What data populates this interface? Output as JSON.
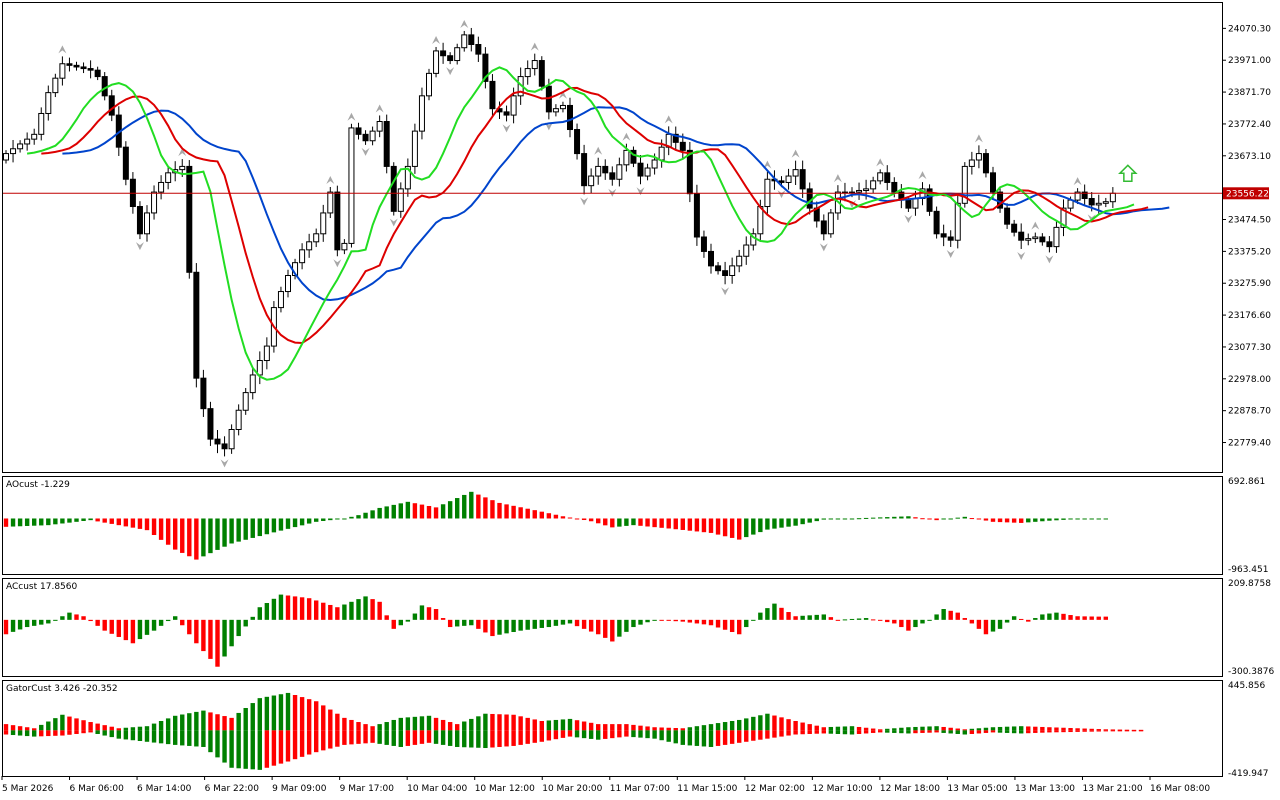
{
  "colors": {
    "background": "#ffffff",
    "frame": "#000000",
    "bull": "#008000",
    "bear": "#ff0000",
    "jaw": "#0044cc",
    "teeth": "#dd0000",
    "lips": "#22dd22",
    "fractal": "#a8a8a8",
    "price_line": "#c00000",
    "signal_arrow": "#33bb33"
  },
  "chart_data": [
    {
      "type": "candlestick",
      "panel": "main",
      "current_price_label": "23556.22",
      "current_price": 23556.22,
      "y_tick_labels": [
        "24070.30",
        "23971.00",
        "23871.70",
        "23772.40",
        "23673.10",
        "23474.50",
        "23375.20",
        "23275.90",
        "23176.60",
        "23077.30",
        "22978.00",
        "22878.70",
        "22779.40"
      ],
      "ylim": [
        22700,
        24140
      ],
      "x_tick_labels": [
        "5 Mar 2026",
        "6 Mar 06:00",
        "6 Mar 14:00",
        "6 Mar 22:00",
        "9 Mar 09:00",
        "9 Mar 17:00",
        "10 Mar 04:00",
        "10 Mar 12:00",
        "10 Mar 20:00",
        "11 Mar 07:00",
        "11 Mar 15:00",
        "12 Mar 02:00",
        "12 Mar 10:00",
        "12 Mar 18:00",
        "13 Mar 05:00",
        "13 Mar 13:00",
        "13 Mar 21:00",
        "16 Mar 08:00"
      ],
      "close_anchors": [
        [
          0,
          23680
        ],
        [
          4,
          23740
        ],
        [
          6,
          23870
        ],
        [
          8,
          23960
        ],
        [
          10,
          23950
        ],
        [
          12,
          23940
        ],
        [
          13,
          23920
        ],
        [
          15,
          23800
        ],
        [
          17,
          23600
        ],
        [
          19,
          23430
        ],
        [
          21,
          23560
        ],
        [
          23,
          23620
        ],
        [
          25,
          23640
        ],
        [
          27,
          22980
        ],
        [
          29,
          22790
        ],
        [
          31,
          22760
        ],
        [
          33,
          22880
        ],
        [
          35,
          22990
        ],
        [
          37,
          23080
        ],
        [
          38,
          23200
        ],
        [
          40,
          23300
        ],
        [
          42,
          23380
        ],
        [
          44,
          23430
        ],
        [
          46,
          23560
        ],
        [
          47,
          23380
        ],
        [
          48,
          23400
        ],
        [
          49,
          23760
        ],
        [
          51,
          23720
        ],
        [
          53,
          23780
        ],
        [
          55,
          23500
        ],
        [
          57,
          23640
        ],
        [
          59,
          23860
        ],
        [
          61,
          24000
        ],
        [
          63,
          23970
        ],
        [
          65,
          24050
        ],
        [
          67,
          23990
        ],
        [
          69,
          23820
        ],
        [
          71,
          23800
        ],
        [
          73,
          23920
        ],
        [
          75,
          23970
        ],
        [
          77,
          23810
        ],
        [
          79,
          23830
        ],
        [
          81,
          23680
        ],
        [
          82,
          23580
        ],
        [
          84,
          23640
        ],
        [
          86,
          23600
        ],
        [
          88,
          23690
        ],
        [
          90,
          23610
        ],
        [
          92,
          23660
        ],
        [
          94,
          23740
        ],
        [
          96,
          23690
        ],
        [
          98,
          23420
        ],
        [
          100,
          23330
        ],
        [
          102,
          23300
        ],
        [
          104,
          23360
        ],
        [
          106,
          23430
        ],
        [
          108,
          23600
        ],
        [
          110,
          23590
        ],
        [
          112,
          23630
        ],
        [
          114,
          23510
        ],
        [
          116,
          23430
        ],
        [
          118,
          23560
        ],
        [
          120,
          23560
        ],
        [
          122,
          23570
        ],
        [
          124,
          23620
        ],
        [
          126,
          23560
        ],
        [
          128,
          23510
        ],
        [
          130,
          23570
        ],
        [
          132,
          23430
        ],
        [
          134,
          23410
        ],
        [
          136,
          23640
        ],
        [
          138,
          23680
        ],
        [
          140,
          23560
        ],
        [
          142,
          23460
        ],
        [
          144,
          23410
        ],
        [
          146,
          23420
        ],
        [
          148,
          23390
        ],
        [
          150,
          23510
        ],
        [
          152,
          23560
        ],
        [
          154,
          23520
        ],
        [
          156,
          23530
        ],
        [
          157,
          23556.22
        ]
      ]
    },
    {
      "type": "bar",
      "panel": "AOcust",
      "label": "AOcust -1.229",
      "y_tick_labels": [
        "692.861",
        "-963.451"
      ],
      "ylim": [
        -963.451,
        692.861
      ],
      "anchors": [
        [
          0,
          -150
        ],
        [
          6,
          -120
        ],
        [
          12,
          -30
        ],
        [
          16,
          -120
        ],
        [
          20,
          -210
        ],
        [
          24,
          -560
        ],
        [
          27,
          -740
        ],
        [
          32,
          -450
        ],
        [
          38,
          -250
        ],
        [
          44,
          -60
        ],
        [
          48,
          0
        ],
        [
          50,
          60
        ],
        [
          53,
          190
        ],
        [
          57,
          300
        ],
        [
          61,
          200
        ],
        [
          66,
          480
        ],
        [
          70,
          280
        ],
        [
          75,
          150
        ],
        [
          79,
          40
        ],
        [
          83,
          -50
        ],
        [
          86,
          -160
        ],
        [
          89,
          -120
        ],
        [
          94,
          -180
        ],
        [
          100,
          -260
        ],
        [
          104,
          -380
        ],
        [
          108,
          -200
        ],
        [
          112,
          -130
        ],
        [
          116,
          -20
        ],
        [
          120,
          0
        ],
        [
          124,
          20
        ],
        [
          128,
          40
        ],
        [
          132,
          -30
        ],
        [
          136,
          30
        ],
        [
          140,
          -60
        ],
        [
          144,
          -80
        ],
        [
          148,
          -40
        ],
        [
          152,
          -10
        ],
        [
          156,
          -2
        ]
      ]
    },
    {
      "type": "bar",
      "panel": "ACcust",
      "label": "ACcust 17.8560",
      "y_tick_labels": [
        "209.8758",
        "-300.3876"
      ],
      "ylim": [
        -300.3876,
        209.8758
      ],
      "anchors": [
        [
          0,
          -80
        ],
        [
          3,
          -40
        ],
        [
          6,
          -20
        ],
        [
          9,
          40
        ],
        [
          11,
          20
        ],
        [
          14,
          -60
        ],
        [
          18,
          -130
        ],
        [
          21,
          -60
        ],
        [
          24,
          20
        ],
        [
          27,
          -130
        ],
        [
          30,
          -260
        ],
        [
          33,
          -90
        ],
        [
          36,
          70
        ],
        [
          39,
          140
        ],
        [
          43,
          120
        ],
        [
          47,
          70
        ],
        [
          51,
          130
        ],
        [
          53,
          100
        ],
        [
          55,
          -50
        ],
        [
          57,
          -10
        ],
        [
          59,
          80
        ],
        [
          61,
          60
        ],
        [
          63,
          -40
        ],
        [
          66,
          -30
        ],
        [
          69,
          -90
        ],
        [
          73,
          -60
        ],
        [
          77,
          -40
        ],
        [
          80,
          -20
        ],
        [
          84,
          -80
        ],
        [
          86,
          -120
        ],
        [
          89,
          -40
        ],
        [
          92,
          0
        ],
        [
          96,
          -10
        ],
        [
          100,
          -30
        ],
        [
          104,
          -80
        ],
        [
          107,
          40
        ],
        [
          109,
          90
        ],
        [
          112,
          20
        ],
        [
          116,
          30
        ],
        [
          118,
          0
        ],
        [
          122,
          10
        ],
        [
          126,
          -20
        ],
        [
          128,
          -60
        ],
        [
          131,
          0
        ],
        [
          133,
          60
        ],
        [
          135,
          40
        ],
        [
          137,
          -20
        ],
        [
          139,
          -80
        ],
        [
          141,
          -50
        ],
        [
          143,
          20
        ],
        [
          145,
          -10
        ],
        [
          147,
          30
        ],
        [
          149,
          40
        ],
        [
          152,
          20
        ],
        [
          155,
          17.856
        ]
      ]
    },
    {
      "type": "bar",
      "panel": "GatorCust",
      "label": "GatorCust 3.426 -20.352",
      "y_tick_labels": [
        "445.856",
        "-419.947"
      ],
      "ylim": [
        -419.947,
        445.856
      ],
      "upper_anchors": [
        [
          0,
          60
        ],
        [
          4,
          20
        ],
        [
          8,
          150
        ],
        [
          12,
          80
        ],
        [
          16,
          20
        ],
        [
          20,
          40
        ],
        [
          24,
          140
        ],
        [
          28,
          190
        ],
        [
          32,
          120
        ],
        [
          36,
          310
        ],
        [
          40,
          360
        ],
        [
          44,
          280
        ],
        [
          48,
          120
        ],
        [
          52,
          40
        ],
        [
          56,
          120
        ],
        [
          60,
          140
        ],
        [
          64,
          60
        ],
        [
          68,
          160
        ],
        [
          72,
          150
        ],
        [
          76,
          90
        ],
        [
          80,
          110
        ],
        [
          84,
          60
        ],
        [
          88,
          60
        ],
        [
          92,
          30
        ],
        [
          96,
          20
        ],
        [
          100,
          60
        ],
        [
          104,
          100
        ],
        [
          108,
          160
        ],
        [
          112,
          90
        ],
        [
          116,
          30
        ],
        [
          120,
          40
        ],
        [
          124,
          10
        ],
        [
          128,
          30
        ],
        [
          132,
          40
        ],
        [
          136,
          10
        ],
        [
          140,
          30
        ],
        [
          144,
          40
        ],
        [
          148,
          30
        ],
        [
          152,
          20
        ],
        [
          156,
          10
        ],
        [
          160,
          5
        ]
      ],
      "lower_anchors": [
        [
          0,
          -40
        ],
        [
          4,
          -60
        ],
        [
          8,
          -50
        ],
        [
          12,
          -20
        ],
        [
          16,
          -80
        ],
        [
          20,
          -110
        ],
        [
          24,
          -140
        ],
        [
          28,
          -160
        ],
        [
          32,
          -360
        ],
        [
          36,
          -380
        ],
        [
          40,
          -300
        ],
        [
          44,
          -210
        ],
        [
          48,
          -140
        ],
        [
          52,
          -120
        ],
        [
          56,
          -160
        ],
        [
          60,
          -120
        ],
        [
          64,
          -160
        ],
        [
          68,
          -170
        ],
        [
          72,
          -150
        ],
        [
          76,
          -110
        ],
        [
          80,
          -60
        ],
        [
          84,
          -90
        ],
        [
          88,
          -60
        ],
        [
          92,
          -80
        ],
        [
          96,
          -140
        ],
        [
          100,
          -160
        ],
        [
          104,
          -120
        ],
        [
          108,
          -80
        ],
        [
          112,
          -40
        ],
        [
          116,
          -30
        ],
        [
          120,
          -40
        ],
        [
          124,
          -20
        ],
        [
          128,
          -30
        ],
        [
          132,
          -20
        ],
        [
          136,
          -40
        ],
        [
          140,
          -20
        ],
        [
          144,
          -30
        ],
        [
          148,
          -20
        ],
        [
          152,
          -15
        ],
        [
          156,
          -10
        ],
        [
          160,
          -5
        ]
      ]
    }
  ]
}
